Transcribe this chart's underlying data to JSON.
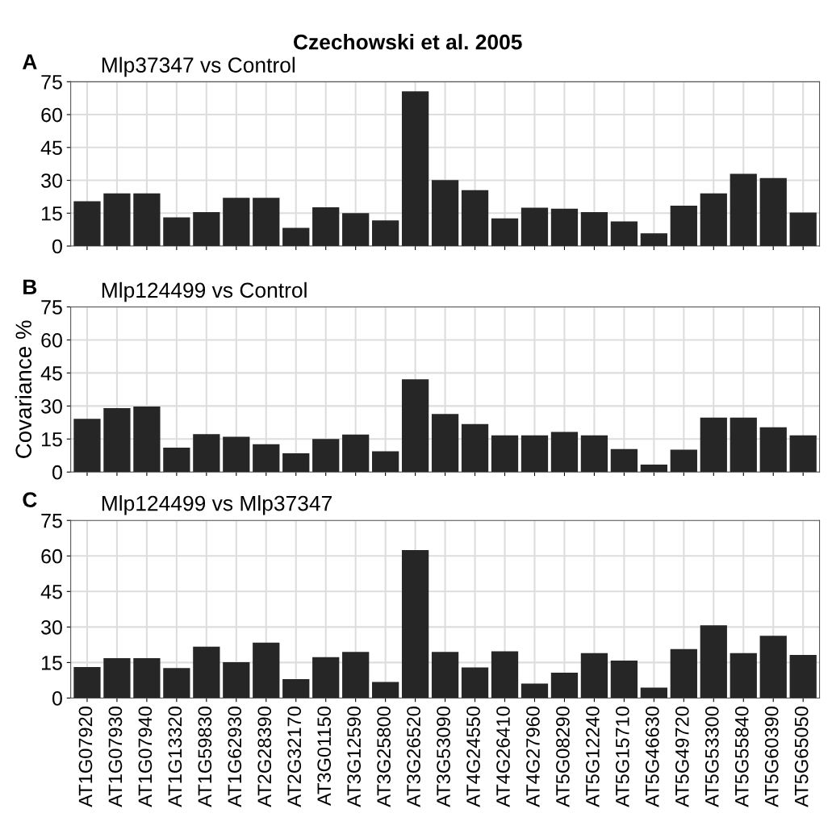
{
  "chart_data": [
    {
      "type": "bar",
      "title": "Mlp37347 vs Control",
      "annotations": [
        "Czechowski et al. 2005",
        "A"
      ],
      "color": "#262626",
      "ylim": [
        0,
        75
      ],
      "yticks": [
        0,
        15,
        30,
        45,
        60,
        75
      ],
      "grid": true,
      "tick_labels": "y",
      "categories": [
        null,
        null,
        null,
        null,
        null,
        null,
        null,
        null,
        null,
        null,
        null,
        null,
        null,
        null,
        null,
        null,
        null,
        null,
        null,
        null,
        null,
        null,
        null,
        null,
        null
      ],
      "values": [
        20.4,
        24,
        24,
        13.1,
        15.5,
        22,
        22,
        8.3,
        17.7,
        15,
        11.7,
        70.6,
        30.1,
        25.5,
        12.6,
        17.5,
        17,
        15.5,
        11.2,
        5.8,
        18.4,
        24,
        33,
        31,
        15.3
      ]
    },
    {
      "type": "bar",
      "title": "Mlp124499 vs Control",
      "annotations": [
        "B"
      ],
      "ylabel": "Covariance %",
      "color": "#262626",
      "ylim": [
        0,
        75
      ],
      "yticks": [
        0,
        15,
        30,
        45,
        60,
        75
      ],
      "grid": true,
      "tick_labels": "y",
      "categories": [
        null,
        null,
        null,
        null,
        null,
        null,
        null,
        null,
        null,
        null,
        null,
        null,
        null,
        null,
        null,
        null,
        null,
        null,
        null,
        null,
        null,
        null,
        null,
        null,
        null
      ],
      "values": [
        24.2,
        29,
        29.8,
        11.1,
        17.2,
        16,
        12.6,
        8.5,
        15,
        17,
        9.4,
        42.1,
        26.4,
        21.8,
        16.7,
        16.7,
        18.2,
        16.7,
        10.4,
        3.4,
        10.2,
        24.7,
        24.7,
        20.3,
        16.7
      ]
    },
    {
      "type": "bar",
      "title": "Mlp124499 vs Mlp37347",
      "annotations": [
        "C"
      ],
      "color": "#262626",
      "ylim": [
        0,
        75
      ],
      "yticks": [
        0,
        15,
        30,
        45,
        60,
        75
      ],
      "grid": true,
      "categories": [
        "AT1G07920",
        "AT1G07930",
        "AT1G07940",
        "AT1G13320",
        "AT1G59830",
        "AT1G62930",
        "AT2G28390",
        "AT2G32170",
        "AT3G01150",
        "AT3G12590",
        "AT3G25800",
        "AT3G26520",
        "AT3G53090",
        "AT4G24550",
        "AT4G26410",
        "AT4G27960",
        "AT5G08290",
        "AT5G12240",
        "AT5G15710",
        "AT5G46630",
        "AT5G49720",
        "AT5G53300",
        "AT5G55840",
        "AT5G60390",
        "AT5G65050"
      ],
      "values": [
        13.1,
        16.8,
        16.8,
        12.7,
        21.7,
        15.1,
        23.4,
        8,
        17.3,
        19.5,
        6.8,
        62.5,
        19.5,
        12.9,
        19.7,
        6.1,
        10.7,
        19,
        15.8,
        4.4,
        20.7,
        30.7,
        19,
        26.3,
        18.2
      ]
    }
  ]
}
